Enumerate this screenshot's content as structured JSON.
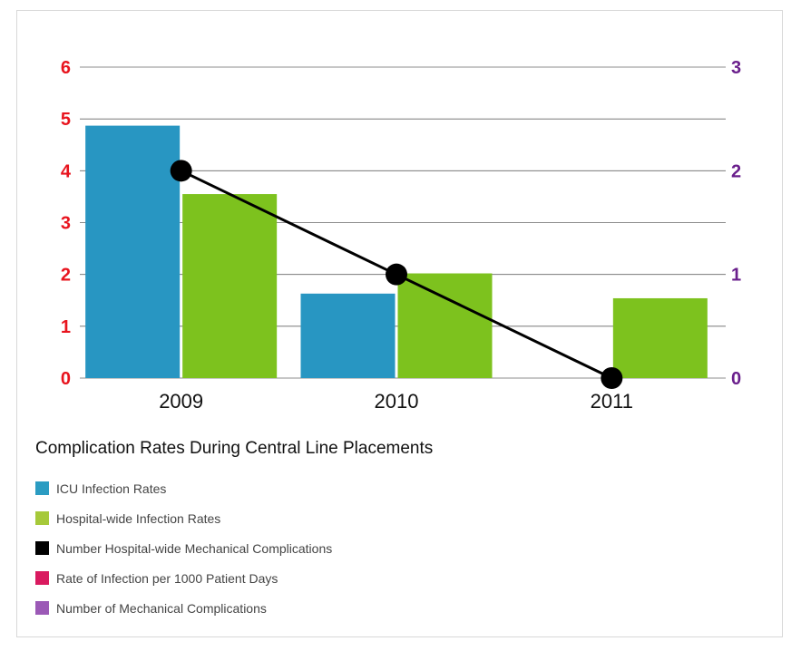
{
  "chart_data": {
    "type": "bar",
    "title": "Complication Rates During Central Line Placements",
    "categories": [
      "2009",
      "2010",
      "2011"
    ],
    "series": [
      {
        "name": "ICU Infection Rates",
        "type": "bar",
        "axis": "left",
        "color": "#2896c2",
        "values": [
          4.87,
          1.63,
          null
        ]
      },
      {
        "name": "Hospital-wide Infection Rates",
        "type": "bar",
        "axis": "left",
        "color": "#7dc21e",
        "values": [
          3.55,
          2.02,
          1.54
        ]
      },
      {
        "name": "Number Hospital-wide Mechanical Complications",
        "type": "line",
        "axis": "right",
        "color": "#000000",
        "values": [
          2,
          1,
          0
        ]
      }
    ],
    "y_left": {
      "range": [
        0,
        6
      ],
      "ticks": [
        "0",
        "1",
        "2",
        "3",
        "4",
        "5",
        "6"
      ],
      "tick_color": "#e8141e"
    },
    "y_right": {
      "range": [
        0,
        3
      ],
      "ticks": [
        "0",
        "1",
        "2",
        "3"
      ],
      "tick_color": "#6a1f8c"
    },
    "grid": true,
    "legend_position": "bottom-left"
  },
  "legend": {
    "title": "Complication Rates During Central Line Placements",
    "items": [
      {
        "label": "ICU Infection Rates",
        "color": "#2b9cc2"
      },
      {
        "label": "Hospital-wide Infection Rates",
        "color": "#a6c93a"
      },
      {
        "label": "Number Hospital-wide Mechanical Complications",
        "color": "#000000"
      },
      {
        "label": "Rate of Infection per 1000 Patient Days",
        "color": "#d91a5f"
      },
      {
        "label": "Number of Mechanical Complications",
        "color": "#9b59b6"
      }
    ]
  }
}
